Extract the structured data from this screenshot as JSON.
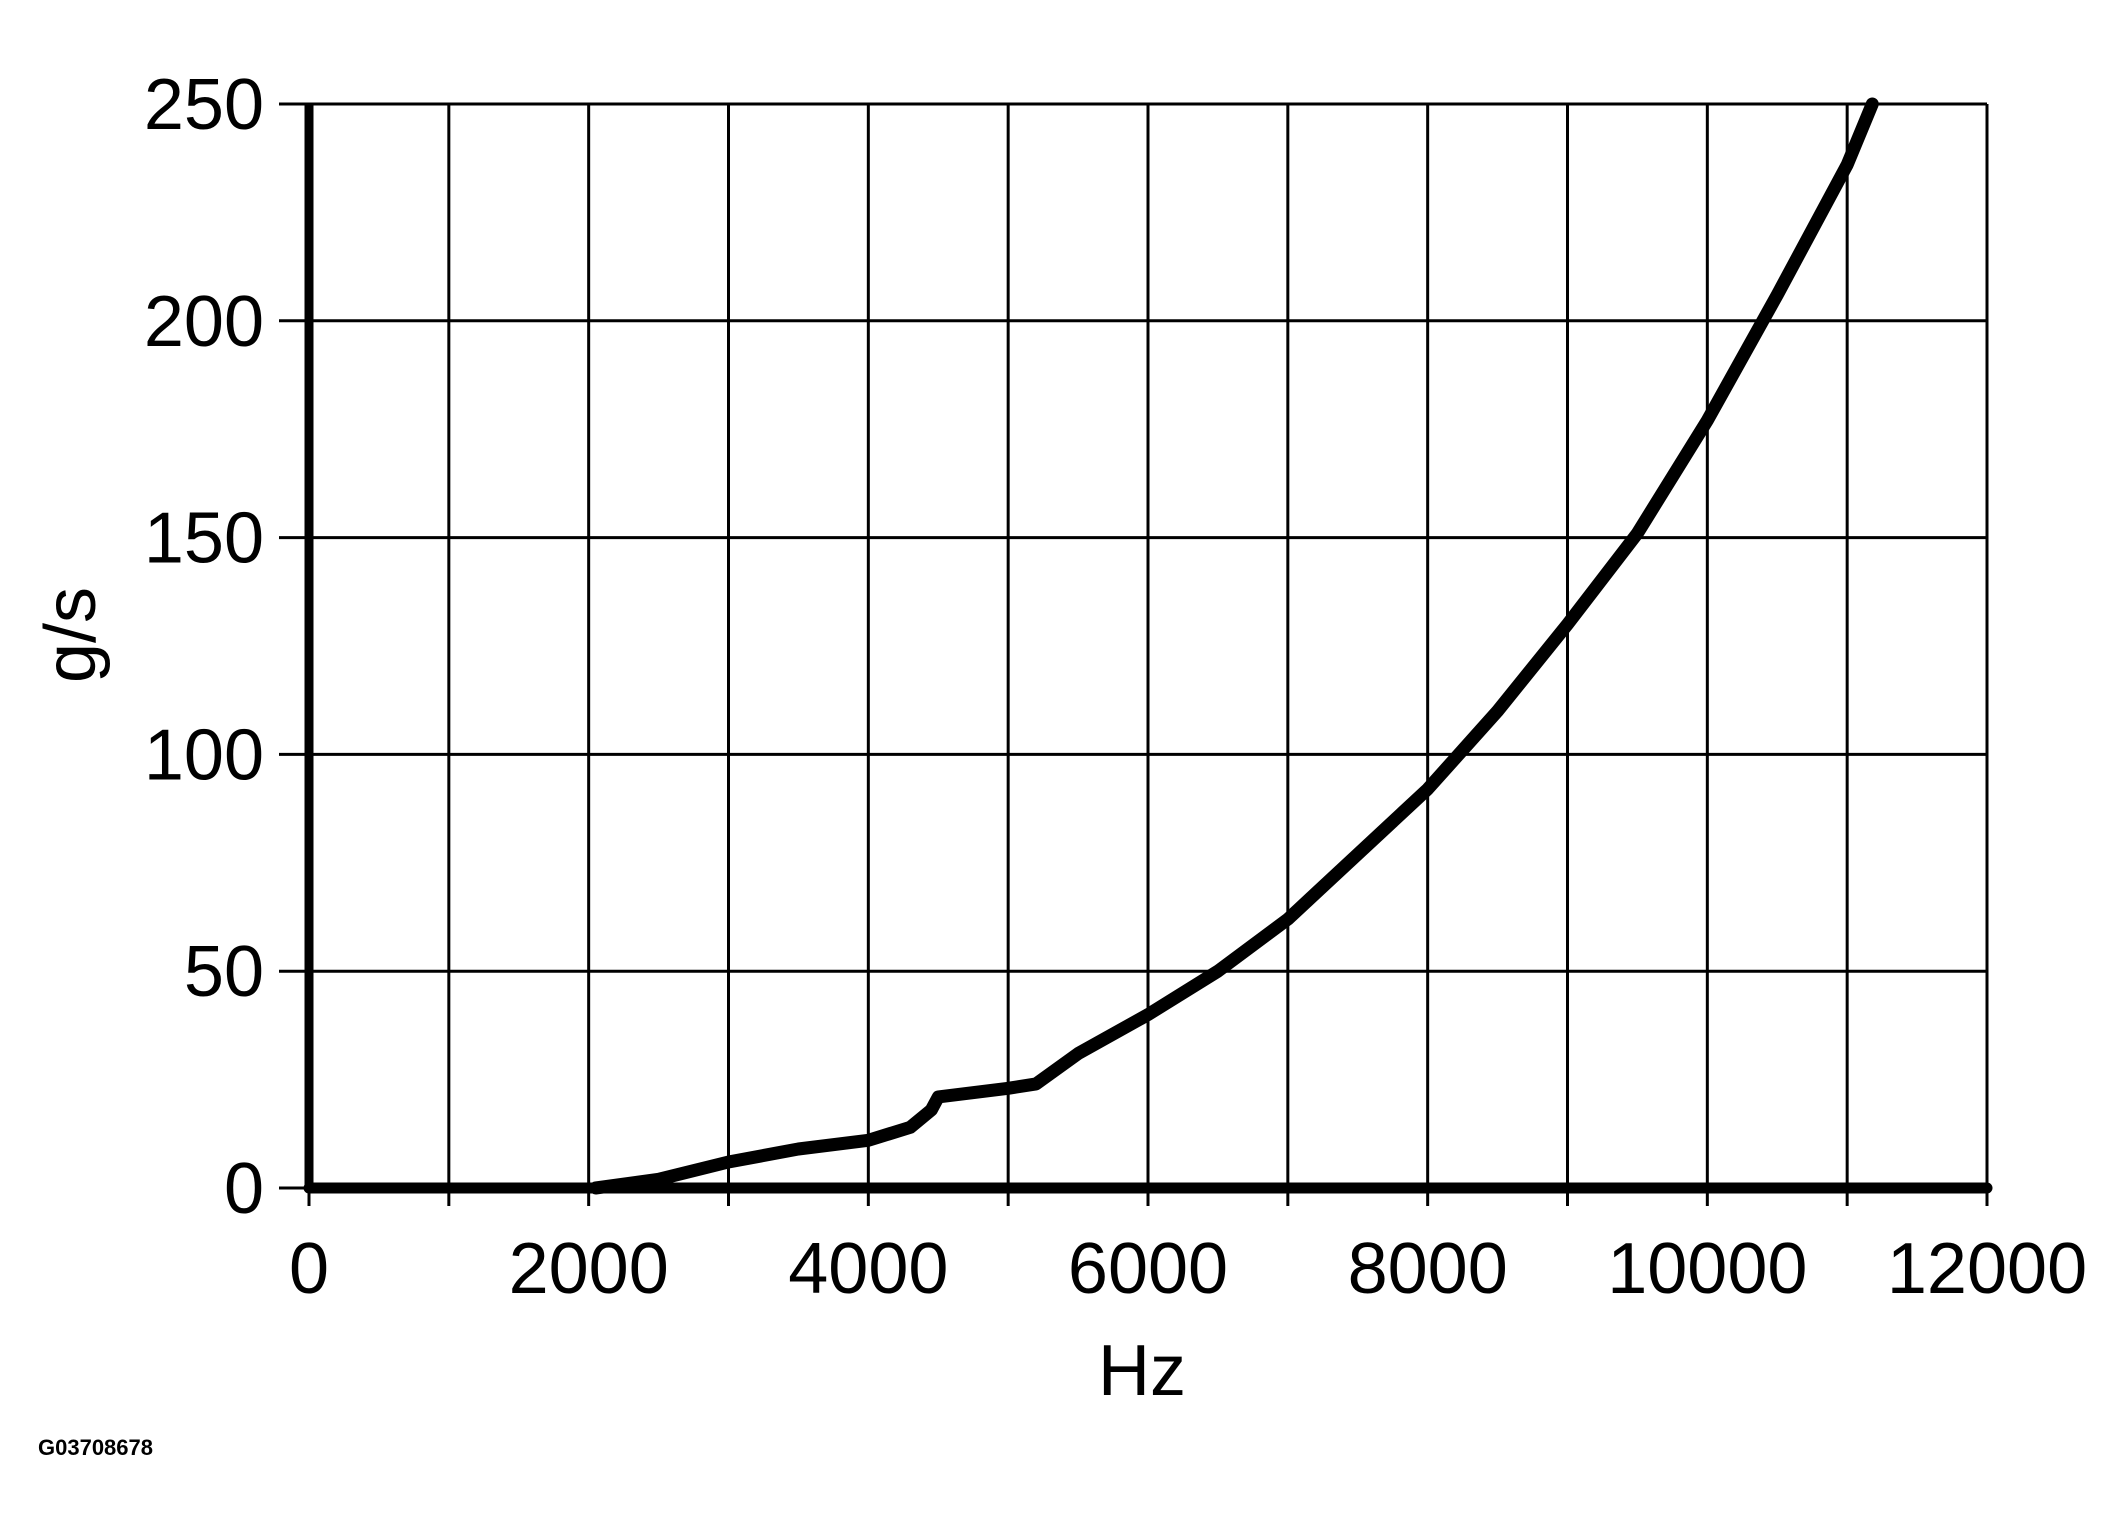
{
  "figure_id": "G03708678",
  "chart_data": {
    "type": "line",
    "xlabel": "Hz",
    "ylabel": "g/s",
    "xlim": [
      0,
      12000
    ],
    "ylim": [
      0,
      250
    ],
    "x_ticks": [
      0,
      1000,
      2000,
      3000,
      4000,
      5000,
      6000,
      7000,
      8000,
      9000,
      10000,
      11000,
      12000
    ],
    "x_tick_labels": [
      "0",
      "2000",
      "4000",
      "6000",
      "8000",
      "10000",
      "12000"
    ],
    "x_tick_label_values": [
      0,
      2000,
      4000,
      6000,
      8000,
      10000,
      12000
    ],
    "y_ticks": [
      0,
      50,
      100,
      150,
      200,
      250
    ],
    "y_tick_labels": [
      "250",
      "200",
      "150",
      "100",
      "50",
      "0"
    ],
    "y_tick_label_values": [
      250,
      200,
      150,
      100,
      50,
      0
    ],
    "grid": true,
    "series_color": "#000000",
    "series": [
      {
        "x": [
          2050,
          2500,
          3000,
          3500,
          4000,
          4300,
          4450,
          4500,
          5000,
          5200,
          5500,
          6000,
          6500,
          7000,
          7500,
          8000,
          8500,
          9000,
          9500,
          10000,
          10500,
          11000,
          11180
        ],
        "y": [
          0,
          2,
          6,
          9,
          11,
          14,
          18,
          21,
          23,
          24,
          31,
          40,
          50,
          62,
          77,
          92,
          110,
          130,
          151,
          177,
          206,
          236,
          250
        ]
      }
    ]
  }
}
